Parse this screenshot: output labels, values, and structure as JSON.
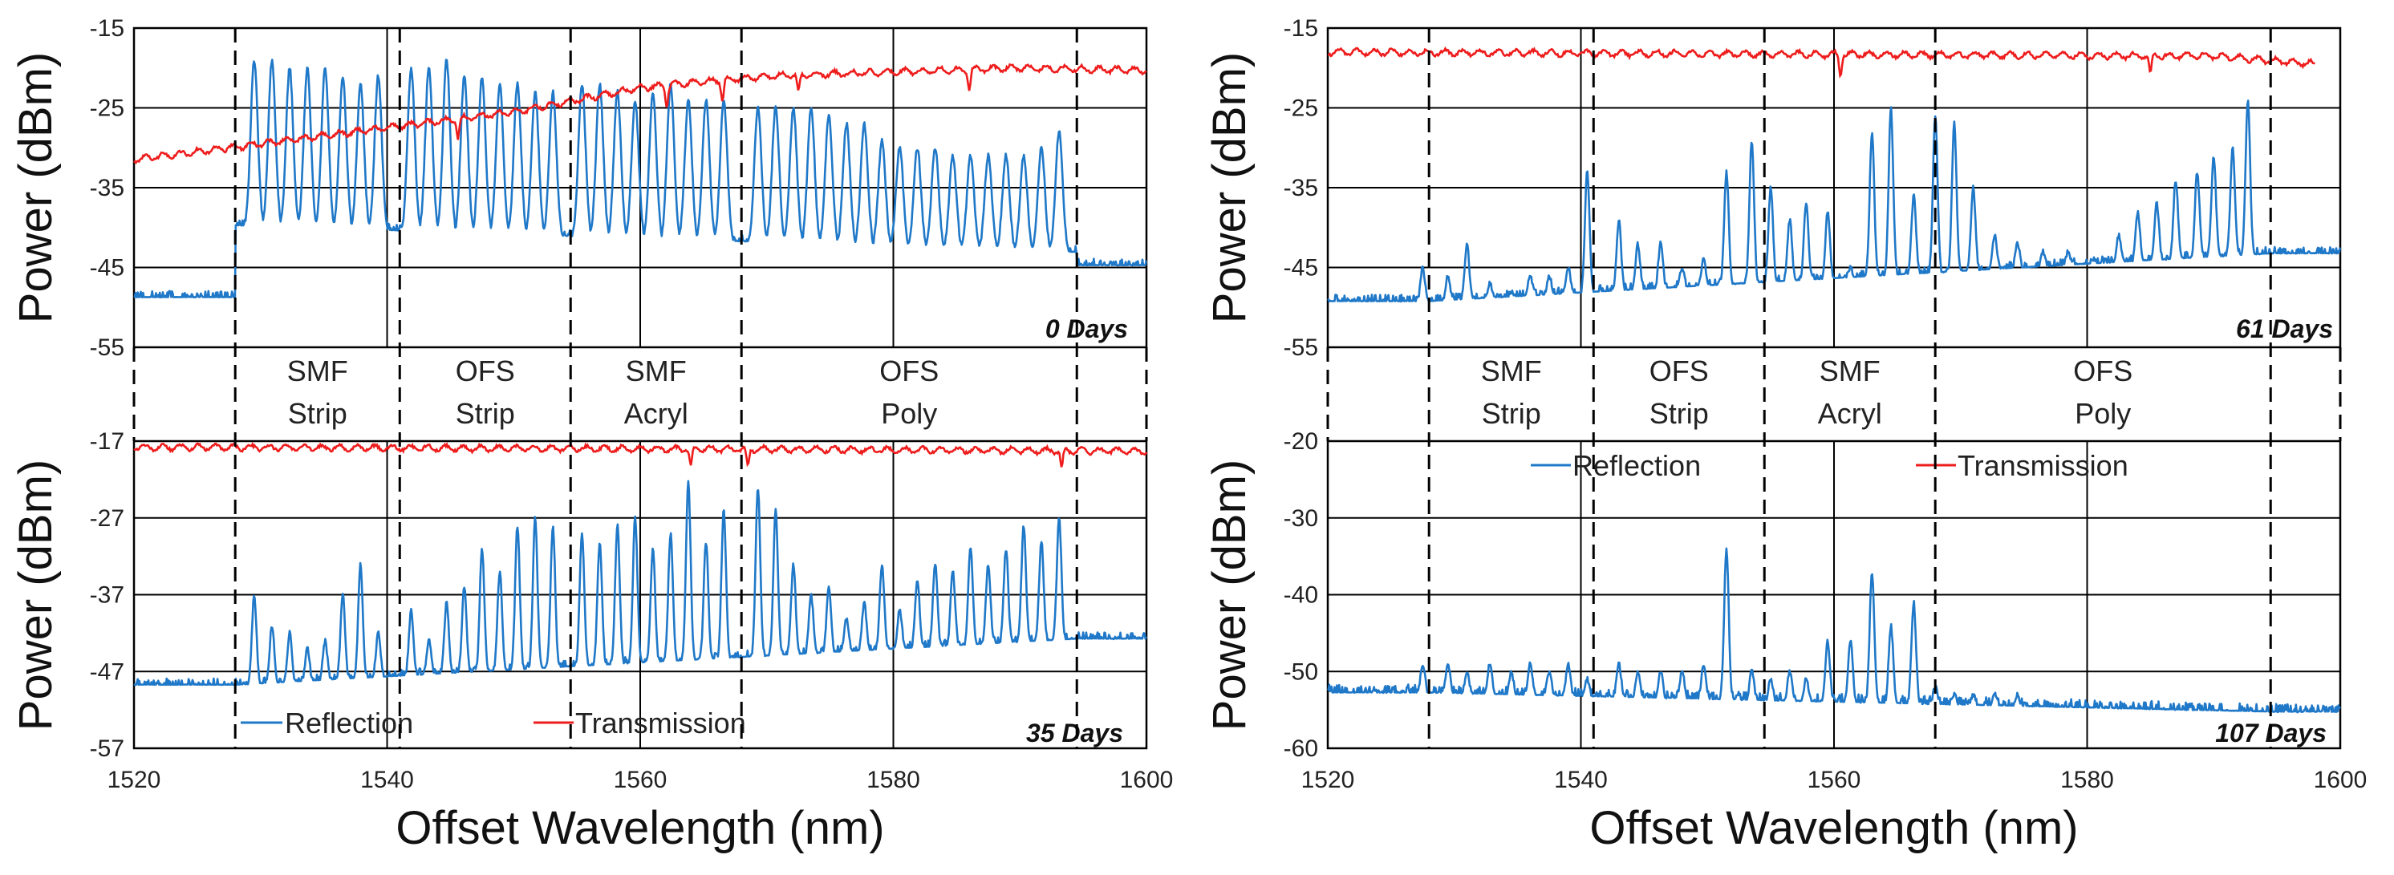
{
  "figure_title": "",
  "chart_data": {
    "type": "line",
    "xlabel": "Offset Wavelength (nm)",
    "ylabel": "Power (dBm)",
    "xlim": [
      1520,
      1600
    ],
    "xticks": [
      "1520",
      "1540",
      "1560",
      "1580",
      "1600"
    ],
    "section_boundaries_nm": [
      1528,
      1541,
      1554.5,
      1568,
      1594.5
    ],
    "sections": [
      {
        "line1": "SMF",
        "line2": "Strip"
      },
      {
        "line1": "OFS",
        "line2": "Strip"
      },
      {
        "line1": "SMF",
        "line2": "Acryl"
      },
      {
        "line1": "OFS",
        "line2": "Poly"
      }
    ],
    "legend": {
      "reflection": "Reflection",
      "transmission": "Transmission"
    },
    "colors": {
      "reflection": "#1f78c8",
      "transmission": "#ee1c1c",
      "grid": "#000000"
    },
    "panels": [
      {
        "label": "0 Days",
        "ylim": [
          -55,
          -15
        ],
        "yticks": [
          "-15",
          "-25",
          "-35",
          "-45",
          "-55"
        ],
        "series": [
          {
            "name": "Reflection",
            "baseline_left": -49,
            "baseline_right": -45,
            "peaks_nm": [
              1529.5,
              1530.9,
              1532.3,
              1533.7,
              1535.1,
              1536.5,
              1537.9,
              1539.3,
              1541.9,
              1543.3,
              1544.7,
              1546.1,
              1547.5,
              1548.9,
              1550.3,
              1551.7,
              1553.1,
              1555.4,
              1556.8,
              1558.2,
              1559.6,
              1561.0,
              1562.4,
              1563.8,
              1565.2,
              1566.6,
              1569.3,
              1570.7,
              1572.1,
              1573.5,
              1574.9,
              1576.3,
              1577.7,
              1579.1,
              1580.5,
              1581.9,
              1583.3,
              1584.7,
              1586.1,
              1587.5,
              1588.9,
              1590.3,
              1591.7,
              1593.1
            ],
            "peaks_db": [
              -19,
              -19,
              -20,
              -20,
              -20,
              -21,
              -22,
              -21,
              -20,
              -20,
              -19,
              -21,
              -21,
              -22,
              -22,
              -23,
              -23,
              -22,
              -22,
              -23,
              -24,
              -23,
              -22,
              -24,
              -24,
              -24,
              -25,
              -25,
              -25,
              -25,
              -26,
              -27,
              -27,
              -29,
              -30,
              -30,
              -30,
              -31,
              -31,
              -31,
              -31,
              -31,
              -30,
              -28
            ]
          },
          {
            "name": "Transmission",
            "points": [
              [
                1520,
                -31.5
              ],
              [
                1530,
                -29.5
              ],
              [
                1540,
                -27.5
              ],
              [
                1550,
                -25.5
              ],
              [
                1560,
                -22.5
              ],
              [
                1570,
                -21
              ],
              [
                1580,
                -20.5
              ],
              [
                1590,
                -20
              ],
              [
                1600,
                -20.3
              ]
            ],
            "dips_nm": [
              1545.6,
              1562.1,
              1566.5,
              1572.5,
              1586
            ]
          }
        ]
      },
      {
        "label": "35 Days",
        "ylim": [
          -57,
          -17
        ],
        "yticks": [
          "-17",
          "-27",
          "-37",
          "-47",
          "-57"
        ],
        "series": [
          {
            "name": "Reflection",
            "baseline_left": -49,
            "baseline_right": -43,
            "peaks_nm": [
              1529.5,
              1530.9,
              1532.3,
              1533.7,
              1535.1,
              1536.5,
              1537.9,
              1539.3,
              1541.9,
              1543.3,
              1544.7,
              1546.1,
              1547.5,
              1548.9,
              1550.3,
              1551.7,
              1553.1,
              1555.4,
              1556.8,
              1558.2,
              1559.6,
              1561.0,
              1562.4,
              1563.8,
              1565.2,
              1566.6,
              1569.3,
              1570.7,
              1572.1,
              1573.5,
              1574.9,
              1576.3,
              1577.7,
              1579.1,
              1580.5,
              1581.9,
              1583.3,
              1584.7,
              1586.1,
              1587.5,
              1588.9,
              1590.3,
              1591.7,
              1593.1
            ],
            "peaks_db": [
              -37,
              -41,
              -42,
              -44,
              -43,
              -37,
              -33,
              -42,
              -39,
              -43,
              -38,
              -36,
              -31,
              -34,
              -28,
              -27,
              -28,
              -29,
              -30,
              -28,
              -27,
              -31,
              -29,
              -22,
              -30,
              -26,
              -23,
              -26,
              -33,
              -37,
              -36,
              -40,
              -38,
              -33,
              -39,
              -35,
              -33,
              -34,
              -31,
              -33,
              -31,
              -28,
              -30,
              -27
            ]
          },
          {
            "name": "Transmission",
            "points": [
              [
                1520,
                -17.8
              ],
              [
                1560,
                -18
              ],
              [
                1600,
                -18.3
              ]
            ],
            "dips_nm": [
              1564,
              1568.5,
              1593.3
            ]
          }
        ]
      },
      {
        "label": "61 Days",
        "ylim": [
          -55,
          -15
        ],
        "yticks": [
          "-15",
          "-25",
          "-35",
          "-45",
          "-55"
        ],
        "series": [
          {
            "name": "Reflection",
            "baseline_left": -49.5,
            "baseline_right": -43.5,
            "peaks_nm": [
              1527.5,
              1529.5,
              1531,
              1532.8,
              1534.5,
              1536,
              1537.5,
              1539,
              1540.5,
              1543,
              1544.5,
              1546.3,
              1548,
              1549.7,
              1551.5,
              1553.5,
              1555,
              1556.5,
              1557.8,
              1559.5,
              1561.3,
              1563,
              1564.5,
              1566.3,
              1568,
              1569.5,
              1571,
              1572.7,
              1574.5,
              1576.5,
              1578.5,
              1580.5,
              1582.5,
              1584,
              1585.5,
              1587,
              1588.7,
              1590,
              1591.5,
              1592.7
            ],
            "peaks_db": [
              -45,
              -46,
              -42,
              -47,
              -48,
              -46,
              -46,
              -45,
              -33,
              -39,
              -42,
              -42,
              -45,
              -44,
              -33,
              -29,
              -35,
              -39,
              -37,
              -38,
              -45,
              -28,
              -25,
              -36,
              -26,
              -27,
              -35,
              -41,
              -42,
              -43,
              -43,
              -44,
              -41,
              -38,
              -37,
              -34,
              -33,
              -31,
              -30,
              -24
            ]
          },
          {
            "name": "Transmission",
            "points": [
              [
                1520,
                -18
              ],
              [
                1560,
                -18.3
              ],
              [
                1590,
                -18.5
              ],
              [
                1598,
                -19.5
              ]
            ],
            "dips_nm": [
              1560.5,
              1585
            ]
          }
        ]
      },
      {
        "label": "107 Days",
        "ylim": [
          -60,
          -20
        ],
        "yticks": [
          "-20",
          "-30",
          "-40",
          "-50",
          "-60"
        ],
        "series": [
          {
            "name": "Reflection",
            "baseline_left": -53,
            "baseline_right": -55.5,
            "peaks_nm": [
              1527.5,
              1529.5,
              1531,
              1532.8,
              1534.5,
              1536,
              1537.5,
              1539,
              1540.5,
              1543,
              1544.5,
              1546.3,
              1548,
              1549.7,
              1551.5,
              1553.5,
              1555,
              1556.5,
              1557.8,
              1559.5,
              1561.3,
              1563,
              1564.5,
              1566.3,
              1568,
              1569.5,
              1571,
              1572.7,
              1574.5
            ],
            "peaks_db": [
              -49,
              -49,
              -50,
              -49,
              -50,
              -49,
              -50,
              -49,
              -51,
              -49,
              -50,
              -50,
              -50,
              -49,
              -34,
              -50,
              -51,
              -50,
              -51,
              -46,
              -46,
              -37,
              -44,
              -41,
              -52,
              -53,
              -53,
              -53,
              -53
            ]
          }
        ]
      }
    ]
  }
}
